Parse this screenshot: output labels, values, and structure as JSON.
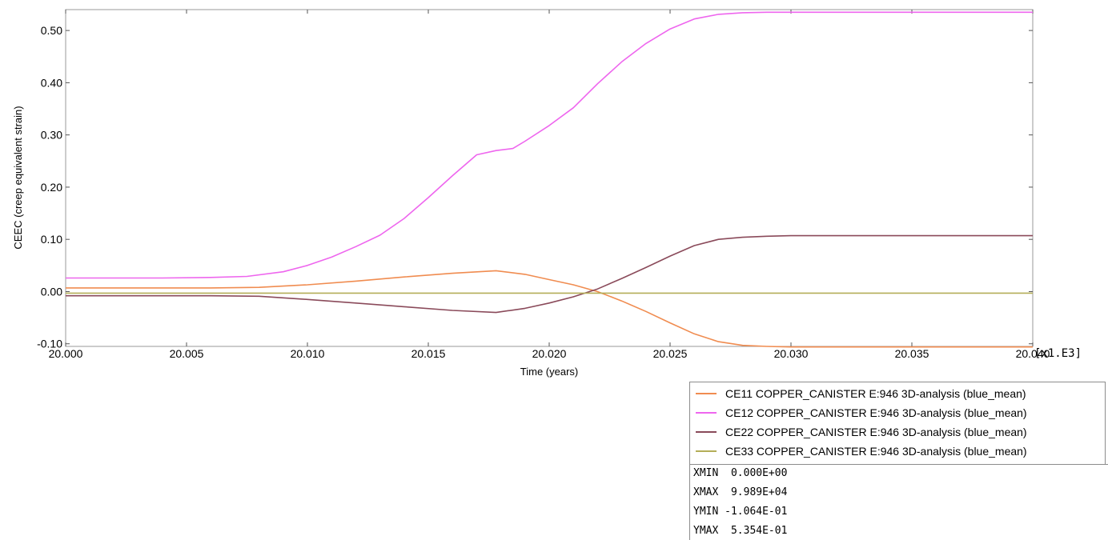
{
  "chart_data": {
    "type": "line",
    "title": "",
    "xlabel": "Time (years)",
    "ylabel": "CEEC (creep equivalent strain)",
    "x_scale_label": "[x1.E3]",
    "xlim": [
      20.0,
      20.04
    ],
    "ylim": [
      -0.105,
      0.54
    ],
    "x_ticks": [
      20.0,
      20.005,
      20.01,
      20.015,
      20.02,
      20.025,
      20.03,
      20.035,
      20.04
    ],
    "x_tick_labels": [
      "20.000",
      "20.005",
      "20.010",
      "20.015",
      "20.020",
      "20.025",
      "20.030",
      "20.035",
      "20.040"
    ],
    "y_ticks": [
      -0.1,
      0.0,
      0.1,
      0.2,
      0.3,
      0.4,
      0.5
    ],
    "y_tick_labels": [
      "-0.10",
      "0.00",
      "0.10",
      "0.20",
      "0.30",
      "0.40",
      "0.50"
    ],
    "grid": false,
    "legend_position": "bottom-right, below plot",
    "series": [
      {
        "name": "CE11 COPPER_CANISTER E:946 3D-analysis (blue_mean)",
        "color": "#f08c50",
        "x": [
          20.0,
          20.002,
          20.004,
          20.006,
          20.008,
          20.01,
          20.012,
          20.014,
          20.016,
          20.0178,
          20.019,
          20.02,
          20.021,
          20.022,
          20.023,
          20.024,
          20.025,
          20.026,
          20.027,
          20.028,
          20.029,
          20.03,
          20.032,
          20.035,
          20.038,
          20.04
        ],
        "y": [
          0.007,
          0.007,
          0.007,
          0.007,
          0.008,
          0.013,
          0.02,
          0.028,
          0.035,
          0.04,
          0.033,
          0.023,
          0.013,
          0.0,
          -0.018,
          -0.038,
          -0.06,
          -0.081,
          -0.096,
          -0.103,
          -0.105,
          -0.106,
          -0.106,
          -0.106,
          -0.106,
          -0.106
        ]
      },
      {
        "name": "CE12 COPPER_CANISTER E:946 3D-analysis (blue_mean)",
        "color": "#ee66ee",
        "x": [
          20.0,
          20.002,
          20.004,
          20.006,
          20.0075,
          20.009,
          20.01,
          20.011,
          20.012,
          20.013,
          20.014,
          20.015,
          20.016,
          20.017,
          20.0178,
          20.0185,
          20.019,
          20.02,
          20.021,
          20.022,
          20.023,
          20.024,
          20.025,
          20.026,
          20.027,
          20.028,
          20.029,
          20.03,
          20.035,
          20.04
        ],
        "y": [
          0.026,
          0.026,
          0.026,
          0.027,
          0.029,
          0.038,
          0.05,
          0.066,
          0.086,
          0.108,
          0.14,
          0.18,
          0.222,
          0.262,
          0.27,
          0.274,
          0.288,
          0.318,
          0.352,
          0.398,
          0.44,
          0.475,
          0.503,
          0.522,
          0.531,
          0.534,
          0.535,
          0.535,
          0.535,
          0.535
        ]
      },
      {
        "name": "CE22 COPPER_CANISTER E:946 3D-analysis (blue_mean)",
        "color": "#8a4a5a",
        "x": [
          20.0,
          20.002,
          20.004,
          20.006,
          20.008,
          20.01,
          20.012,
          20.014,
          20.016,
          20.0178,
          20.019,
          20.02,
          20.021,
          20.022,
          20.023,
          20.024,
          20.025,
          20.026,
          20.027,
          20.028,
          20.029,
          20.03,
          20.032,
          20.035,
          20.038,
          20.04
        ],
        "y": [
          -0.008,
          -0.008,
          -0.008,
          -0.008,
          -0.009,
          -0.015,
          -0.022,
          -0.029,
          -0.036,
          -0.04,
          -0.032,
          -0.022,
          -0.01,
          0.005,
          0.025,
          0.046,
          0.068,
          0.088,
          0.1,
          0.104,
          0.106,
          0.107,
          0.107,
          0.107,
          0.107,
          0.107
        ]
      },
      {
        "name": "CE33 COPPER_CANISTER E:946 3D-analysis (blue_mean)",
        "color": "#b4ae58",
        "x": [
          20.0,
          20.01,
          20.02,
          20.03,
          20.04
        ],
        "y": [
          -0.003,
          -0.003,
          -0.003,
          -0.003,
          -0.003
        ]
      }
    ]
  },
  "info": {
    "xmin": "XMIN  0.000E+00",
    "xmax": "XMAX  9.989E+04",
    "ymin": "YMIN -1.064E-01",
    "ymax": "YMAX  5.354E-01"
  }
}
